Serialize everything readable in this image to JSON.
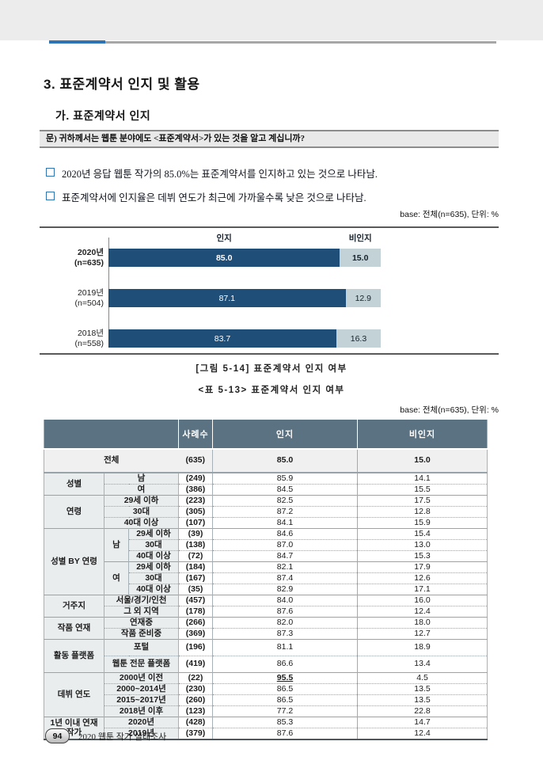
{
  "colors": {
    "accent_blue": "#2e74b5",
    "band_gray": "#ececec",
    "bar_navy": "#1f4e79",
    "bar_light": "#c3d2d7",
    "table_header_bg": "#5a7282",
    "label_col_bg": "#eaedee"
  },
  "title": "3. 표준계약서 인지 및 활용",
  "subtitle": "가. 표준계약서 인지",
  "question": "문) 귀하께서는 웹툰 분야에도 <표준계약서>가 있는 것을 알고 계십니까?",
  "bullets": [
    "2020년 응답 웹툰 작가의 85.0%는 표준계약서를 인지하고 있는 것으로 나타남.",
    "표준계약서에 인지율은 데뷔 연도가 최근에 가까울수록 낮은 것으로 나타남."
  ],
  "base_note": "base: 전체(n=635), 단위: %",
  "chart_data": {
    "type": "bar",
    "orientation": "horizontal",
    "stacked": true,
    "title": "[그림 5-14] 표준계약서 인지 여부",
    "unit": "%",
    "xlim": [
      0,
      100
    ],
    "legend_position": "top",
    "grid": false,
    "categories": [
      {
        "line1": "2020년",
        "line2": "(n=635)",
        "emphasis": true
      },
      {
        "line1": "2019년",
        "line2": "(n=504)",
        "emphasis": false
      },
      {
        "line1": "2018년",
        "line2": "(n=558)",
        "emphasis": false
      }
    ],
    "series": [
      {
        "name": "인지",
        "color": "#1f4e79",
        "text_color": "#ffffff",
        "values": [
          85.0,
          87.1,
          83.7
        ]
      },
      {
        "name": "비인지",
        "color": "#c3d2d7",
        "text_color": "#16212b",
        "values": [
          15.0,
          12.9,
          16.3
        ]
      }
    ]
  },
  "table_caption": "<표 5-13> 표준계약서 인지 여부",
  "table": {
    "columns": [
      "",
      "사례수",
      "인지",
      "비인지"
    ],
    "total_row": {
      "label": "전체",
      "n": "(635)",
      "values": [
        "85.0",
        "15.0"
      ]
    },
    "groups": [
      {
        "label": "성별",
        "rows": [
          {
            "cat": "남",
            "n": "(249)",
            "v": [
              "85.9",
              "14.1"
            ]
          },
          {
            "cat": "여",
            "n": "(386)",
            "v": [
              "84.5",
              "15.5"
            ]
          }
        ]
      },
      {
        "label": "연령",
        "rows": [
          {
            "cat": "29세 이하",
            "n": "(223)",
            "v": [
              "82.5",
              "17.5"
            ]
          },
          {
            "cat": "30대",
            "n": "(305)",
            "v": [
              "87.2",
              "12.8"
            ]
          },
          {
            "cat": "40대 이상",
            "n": "(107)",
            "v": [
              "84.1",
              "15.9"
            ]
          }
        ]
      },
      {
        "label": "성별 BY 연령",
        "sub": [
          {
            "label": "남",
            "rows": [
              {
                "cat": "29세 이하",
                "n": "(39)",
                "v": [
                  "84.6",
                  "15.4"
                ]
              },
              {
                "cat": "30대",
                "n": "(138)",
                "v": [
                  "87.0",
                  "13.0"
                ]
              },
              {
                "cat": "40대 이상",
                "n": "(72)",
                "v": [
                  "84.7",
                  "15.3"
                ]
              }
            ]
          },
          {
            "label": "여",
            "rows": [
              {
                "cat": "29세 이하",
                "n": "(184)",
                "v": [
                  "82.1",
                  "17.9"
                ]
              },
              {
                "cat": "30대",
                "n": "(167)",
                "v": [
                  "87.4",
                  "12.6"
                ]
              },
              {
                "cat": "40대 이상",
                "n": "(35)",
                "v": [
                  "82.9",
                  "17.1"
                ]
              }
            ]
          }
        ]
      },
      {
        "label": "거주지",
        "rows": [
          {
            "cat": "서울/경기/인천",
            "n": "(457)",
            "v": [
              "84.0",
              "16.0"
            ]
          },
          {
            "cat": "그 외 지역",
            "n": "(178)",
            "v": [
              "87.6",
              "12.4"
            ]
          }
        ]
      },
      {
        "label": "작품 연재",
        "rows": [
          {
            "cat": "연재중",
            "n": "(266)",
            "v": [
              "82.0",
              "18.0"
            ]
          },
          {
            "cat": "작품 준비중",
            "n": "(369)",
            "v": [
              "87.3",
              "12.7"
            ]
          }
        ]
      },
      {
        "label": "활동 플랫폼",
        "tall": true,
        "rows": [
          {
            "cat": "포털",
            "n": "(196)",
            "v": [
              "81.1",
              "18.9"
            ]
          },
          {
            "cat": "웹툰 전문 플랫폼",
            "n": "(419)",
            "v": [
              "86.6",
              "13.4"
            ]
          }
        ]
      },
      {
        "label": "데뷔 연도",
        "rows": [
          {
            "cat": "2000년 이전",
            "n": "(22)",
            "v": [
              "95.5",
              "4.5"
            ],
            "u": 0
          },
          {
            "cat": "2000~2014년",
            "n": "(230)",
            "v": [
              "86.5",
              "13.5"
            ]
          },
          {
            "cat": "2015~2017년",
            "n": "(260)",
            "v": [
              "86.5",
              "13.5"
            ]
          },
          {
            "cat": "2018년 이후",
            "n": "(123)",
            "v": [
              "77.2",
              "22.8"
            ]
          }
        ]
      },
      {
        "label": "1년 이내 연재 작가",
        "rows": [
          {
            "cat": "2020년",
            "n": "(428)",
            "v": [
              "85.3",
              "14.7"
            ]
          },
          {
            "cat": "2019년",
            "n": "(379)",
            "v": [
              "87.6",
              "12.4"
            ]
          }
        ]
      }
    ]
  },
  "footer": {
    "page_number": "94",
    "text": "2020 웹툰 작가 실태조사"
  }
}
